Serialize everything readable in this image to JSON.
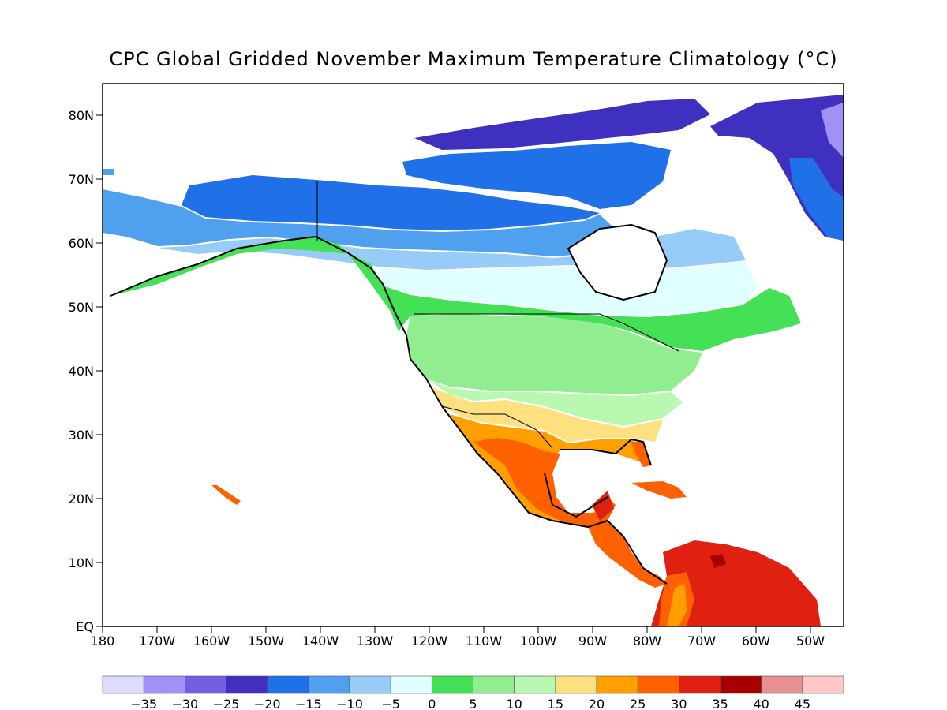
{
  "map": {
    "title": "CPC Global Gridded November Maximum Temperature Climatology (°C)",
    "lat_ticks": [
      "80N",
      "70N",
      "60N",
      "50N",
      "40N",
      "30N",
      "20N",
      "10N",
      "EQ"
    ],
    "lon_ticks": [
      "180",
      "170W",
      "160W",
      "150W",
      "140W",
      "130W",
      "120W",
      "110W",
      "100W",
      "90W",
      "80W",
      "70W",
      "60W",
      "50W"
    ]
  },
  "colorbar": {
    "labels": [
      "-35",
      "-30",
      "-25",
      "-20",
      "-15",
      "-10",
      "-5",
      "0",
      "5",
      "10",
      "15",
      "20",
      "25",
      "30",
      "35",
      "40",
      "45"
    ],
    "colors": [
      "#dcdcff",
      "#a090f8",
      "#7060e0",
      "#4030c0",
      "#2070e8",
      "#50a0f0",
      "#98ccf8",
      "#e0ffff",
      "#44e055",
      "#90ee90",
      "#b8f8b0",
      "#ffe080",
      "#ffa000",
      "#ff6000",
      "#e02010",
      "#a80000",
      "#e89090",
      "#ffc8c8"
    ]
  }
}
